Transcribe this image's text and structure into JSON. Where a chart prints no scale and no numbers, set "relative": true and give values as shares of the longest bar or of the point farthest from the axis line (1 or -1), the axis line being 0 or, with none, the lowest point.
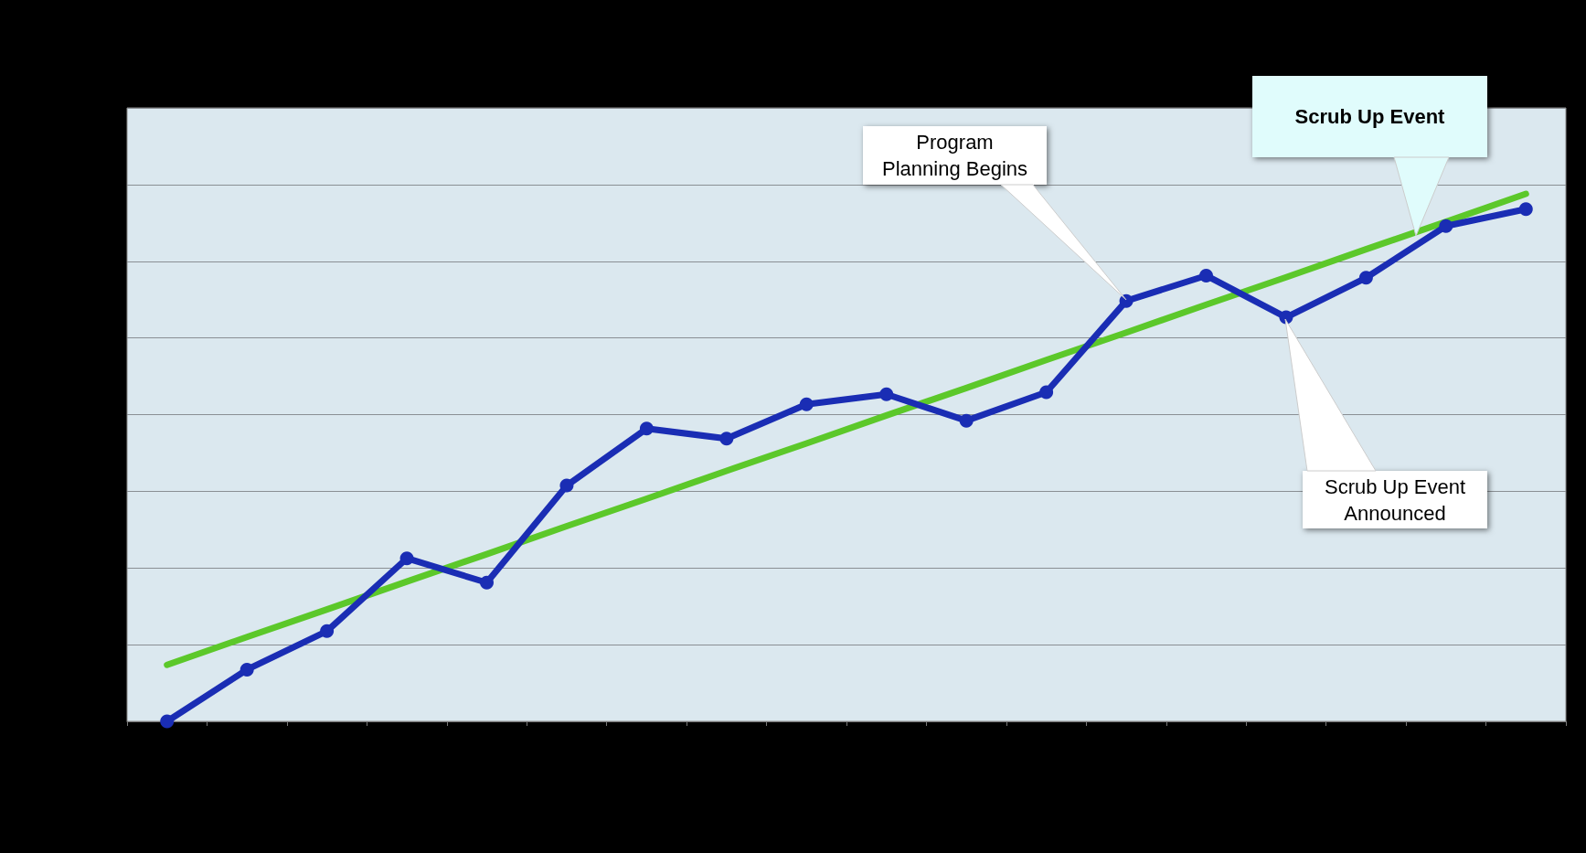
{
  "chart_data": {
    "type": "line",
    "relative": true,
    "categories": [
      null,
      null,
      null,
      null,
      null,
      null,
      null,
      null,
      null,
      null,
      null,
      null,
      null,
      null,
      null,
      null,
      null,
      null
    ],
    "series": [
      {
        "color": "#1a2db4",
        "marker": "circle",
        "values": [
          0,
          0.098,
          0.171,
          0.309,
          0.263,
          0.447,
          0.555,
          0.536,
          0.601,
          0.62,
          0.57,
          0.624,
          0.797,
          0.845,
          0.766,
          0.841,
          0.939,
          0.971
        ]
      },
      {
        "color": "#5cc82a",
        "marker": "none",
        "values": [
          0.107,
          0.16,
          0.212,
          0.265,
          0.317,
          0.37,
          0.422,
          0.475,
          0.527,
          0.58,
          0.632,
          0.685,
          0.737,
          0.79,
          0.842,
          0.895,
          0.947,
          1.0
        ]
      }
    ],
    "grid": "y",
    "annotations": [
      "Program\nPlanning Begins",
      "Scrub Up Event",
      "Scrub Up Event\nAnnounced"
    ]
  }
}
